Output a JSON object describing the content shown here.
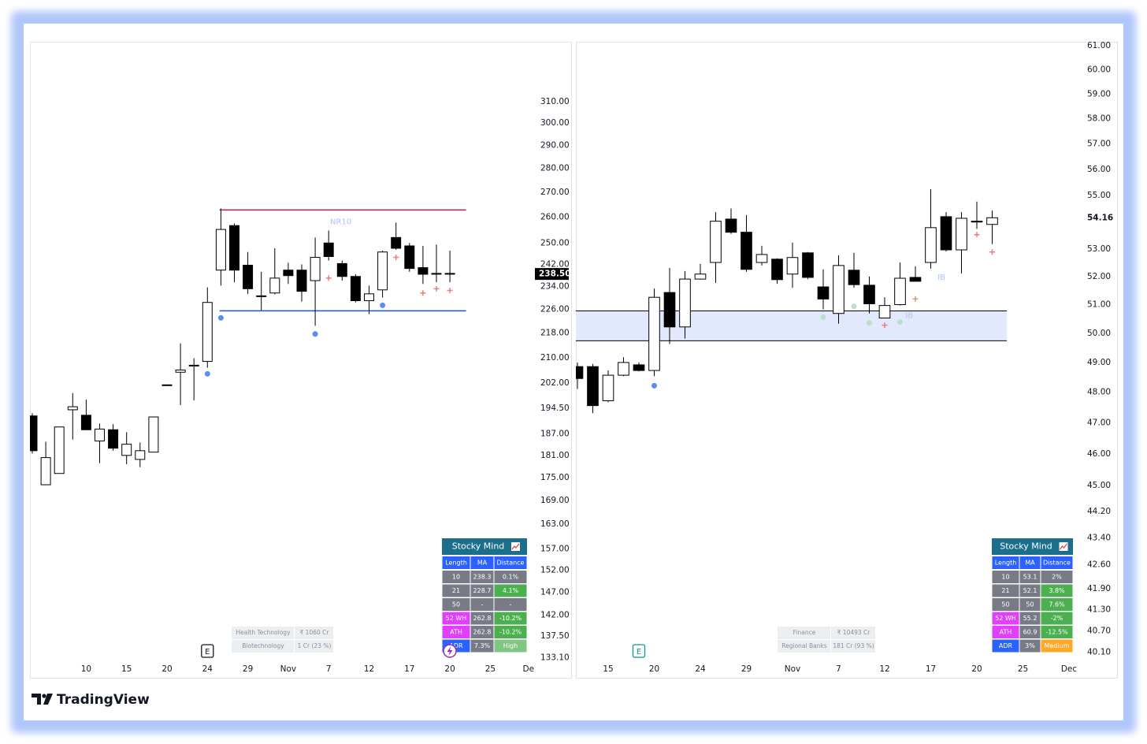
{
  "brand": "TradingView",
  "chart_data": [
    {
      "type": "candlestick",
      "log_scale": true,
      "ylim": [
        132.2,
        310.3
      ],
      "yticks": [
        {
          "value": 310,
          "label": "310.00"
        },
        {
          "value": 300,
          "label": "300.00"
        },
        {
          "value": 290,
          "label": "290.00"
        },
        {
          "value": 280,
          "label": "280.00"
        },
        {
          "value": 270,
          "label": "270.00"
        },
        {
          "value": 260,
          "label": "260.00"
        },
        {
          "value": 250,
          "label": "250.00"
        },
        {
          "value": 242,
          "label": "242.00"
        },
        {
          "value": 234,
          "label": "234.00"
        },
        {
          "value": 226,
          "label": "226.00"
        },
        {
          "value": 218,
          "label": "218.00"
        },
        {
          "value": 210,
          "label": "210.00"
        },
        {
          "value": 202,
          "label": "202.00"
        },
        {
          "value": 194.5,
          "label": "194.50"
        },
        {
          "value": 187,
          "label": "187.00"
        },
        {
          "value": 181,
          "label": "181.00"
        },
        {
          "value": 175,
          "label": "175.00"
        },
        {
          "value": 169,
          "label": "169.00"
        },
        {
          "value": 163,
          "label": "163.00"
        },
        {
          "value": 157,
          "label": "157.00"
        },
        {
          "value": 152,
          "label": "152.00"
        },
        {
          "value": 147,
          "label": "147.00"
        },
        {
          "value": 142,
          "label": "142.00"
        },
        {
          "value": 137.5,
          "label": "137.50"
        },
        {
          "value": 133.1,
          "label": "133.10"
        }
      ],
      "categories": [
        null,
        null,
        null,
        null,
        "10",
        null,
        null,
        "15",
        null,
        null,
        "20",
        null,
        null,
        "24",
        null,
        null,
        "29",
        null,
        null,
        "Nov",
        null,
        null,
        "7",
        null,
        null,
        "12",
        null,
        null,
        "17",
        null,
        null,
        "20",
        null,
        null,
        "25",
        null,
        null,
        "Dec"
      ],
      "open": [
        192.2,
        173.1,
        176.1,
        194.0,
        192.4,
        185.0,
        188.2,
        181.0,
        179.9,
        181.9,
        201.5,
        205.4,
        207.6,
        208.8,
        239.9,
        256.7,
        241.7,
        230.7,
        231.7,
        239.9,
        239.9,
        236.1,
        250.0,
        242.3,
        237.6,
        229.0,
        232.8,
        252.1,
        248.9,
        240.8,
        238.7,
        238.7,
        null,
        null,
        null,
        null,
        null,
        null
      ],
      "high": [
        193.0,
        184.8,
        189.0,
        199.0,
        197.0,
        190.0,
        189.8,
        187.5,
        184.6,
        191.9,
        201.5,
        214.6,
        209.8,
        233.7,
        263.5,
        257.6,
        246.6,
        239.3,
        248.0,
        242.6,
        242.0,
        252.1,
        254.8,
        243.4,
        238.4,
        234.3,
        247.1,
        257.9,
        250.0,
        248.9,
        249.4,
        247.1,
        null,
        null,
        null,
        null,
        null,
        null
      ],
      "low": [
        181.5,
        173.1,
        176.1,
        185.4,
        188.2,
        178.9,
        182.3,
        178.6,
        177.8,
        181.9,
        201.5,
        195.4,
        196.8,
        206.8,
        234.3,
        235.5,
        231.4,
        225.7,
        231.2,
        234.9,
        228.7,
        220.4,
        243.4,
        236.1,
        228.4,
        224.4,
        230.1,
        247.4,
        239.3,
        234.9,
        235.5,
        235.5,
        null,
        null,
        null,
        null,
        null,
        null
      ],
      "close": [
        182.3,
        180.4,
        189.0,
        194.9,
        188.2,
        188.4,
        183.0,
        184.1,
        182.3,
        191.9,
        201.5,
        206.1,
        207.6,
        228.4,
        255.2,
        239.9,
        233.2,
        230.7,
        237.0,
        237.9,
        232.3,
        244.6,
        244.9,
        237.6,
        229.0,
        231.4,
        246.6,
        248.0,
        240.5,
        238.4,
        238.7,
        238.5,
        null,
        null,
        null,
        null,
        null,
        null
      ],
      "up_color": "#ffffff",
      "down_color": "#000000",
      "wick_color": "#000000",
      "last_price": {
        "value": 238.5,
        "label": "238.50"
      },
      "hlines": [
        {
          "value": 262.9,
          "color": "#c2185b",
          "span": [
            13.9,
            32.2
          ]
        },
        {
          "value": 225.5,
          "color": "#1e53e5",
          "span": [
            13.9,
            32.2
          ]
        }
      ],
      "markers": [
        {
          "index": 13,
          "value": 204.9,
          "shape": "dot",
          "color": "#5b8def"
        },
        {
          "index": 14,
          "value": 223.1,
          "shape": "dot",
          "color": "#5b8def"
        },
        {
          "index": 21,
          "value": 217.7,
          "shape": "dot",
          "color": "#5b8def"
        },
        {
          "index": 26,
          "value": 227.4,
          "shape": "dot",
          "color": "#5b8def"
        },
        {
          "index": 22,
          "value": 237.0,
          "shape": "plus",
          "color": "#ef7d7d"
        },
        {
          "index": 27,
          "value": 244.6,
          "shape": "plus",
          "color": "#ef7d7d"
        },
        {
          "index": 29,
          "value": 231.7,
          "shape": "plus",
          "color": "#ef7d7d"
        },
        {
          "index": 30,
          "value": 233.2,
          "shape": "plus",
          "color": "#ef7d7d"
        },
        {
          "index": 31,
          "value": 232.6,
          "shape": "plus",
          "color": "#ef7d7d"
        }
      ],
      "annotations": [
        {
          "text": "NR10",
          "index": 22.9,
          "value": 258.2,
          "color": "#a9c4f5"
        }
      ],
      "events": [
        {
          "label": "E",
          "index": 13,
          "color": "#131722"
        }
      ],
      "table": {
        "title": "Stocky Mind",
        "title_color": "#1b6e8c",
        "header_color": "#2962ff",
        "columns": [
          "Length",
          "MA",
          "Distance"
        ],
        "rows": [
          [
            "10",
            "238.3",
            "0.1%"
          ],
          [
            "21",
            "228.7",
            "4.1%"
          ],
          [
            "50",
            "-",
            "-"
          ],
          [
            "52 WH",
            "262.8",
            "-10.2%"
          ],
          [
            "ATH",
            "262.8",
            "-10.2%"
          ],
          [
            "ADR",
            "7.3%",
            "High"
          ]
        ],
        "row_colors": [
          [
            "#787b86",
            "#787b86",
            "#787b86"
          ],
          [
            "#787b86",
            "#787b86",
            "#4caf50"
          ],
          [
            "#787b86",
            "#787b86",
            "#787b86"
          ],
          [
            "#e040fb",
            "#787b86",
            "#4caf50"
          ],
          [
            "#e040fb",
            "#787b86",
            "#4caf50"
          ],
          [
            "#2962ff",
            "#787b86",
            "#81c784"
          ]
        ]
      },
      "info": [
        [
          "Health Technology",
          "₹ 1060 Cr"
        ],
        [
          "Biotechnology",
          "1 Cr (23 %)"
        ]
      ]
    },
    {
      "type": "candlestick",
      "log_scale": true,
      "ylim": [
        39.83,
        61.27
      ],
      "yticks": [
        {
          "value": 61,
          "label": "61.00"
        },
        {
          "value": 60,
          "label": "60.00"
        },
        {
          "value": 59,
          "label": "59.00"
        },
        {
          "value": 58,
          "label": "58.00"
        },
        {
          "value": 57,
          "label": "57.00"
        },
        {
          "value": 56,
          "label": "56.00"
        },
        {
          "value": 55,
          "label": "55.00"
        },
        {
          "value": 53,
          "label": "53.00"
        },
        {
          "value": 52,
          "label": "52.00"
        },
        {
          "value": 51,
          "label": "51.00"
        },
        {
          "value": 50,
          "label": "50.00"
        },
        {
          "value": 49,
          "label": "49.00"
        },
        {
          "value": 48,
          "label": "48.00"
        },
        {
          "value": 47,
          "label": "47.00"
        },
        {
          "value": 46,
          "label": "46.00"
        },
        {
          "value": 45,
          "label": "45.00"
        },
        {
          "value": 44.2,
          "label": "44.20"
        },
        {
          "value": 43.4,
          "label": "43.40"
        },
        {
          "value": 42.6,
          "label": "42.60"
        },
        {
          "value": 41.9,
          "label": "41.90"
        },
        {
          "value": 41.3,
          "label": "41.30"
        },
        {
          "value": 40.7,
          "label": "40.70"
        },
        {
          "value": 40.1,
          "label": "40.10"
        }
      ],
      "categories": [
        null,
        null,
        "15",
        null,
        null,
        "20",
        null,
        null,
        "24",
        null,
        null,
        "29",
        null,
        null,
        "Nov",
        null,
        null,
        "7",
        null,
        null,
        "12",
        null,
        null,
        "17",
        null,
        null,
        "20",
        null,
        null,
        "25",
        null,
        null,
        "Dec"
      ],
      "open": [
        48.86,
        48.86,
        47.72,
        48.57,
        48.92,
        48.73,
        51.43,
        50.22,
        51.91,
        52.51,
        54.11,
        53.62,
        52.51,
        52.63,
        52.09,
        52.86,
        51.63,
        50.69,
        52.23,
        51.69,
        50.53,
        51.0,
        51.97,
        52.51,
        54.2,
        52.97,
        54.03,
        53.91,
        null,
        null,
        null,
        null,
        null
      ],
      "high": [
        49.0,
        48.95,
        48.73,
        49.18,
        49.0,
        51.57,
        52.31,
        52.2,
        52.46,
        54.37,
        54.51,
        54.26,
        53.12,
        52.66,
        53.24,
        52.89,
        52.26,
        52.77,
        52.86,
        52.0,
        51.26,
        52.51,
        52.37,
        55.24,
        54.37,
        54.37,
        54.77,
        54.43,
        null,
        null,
        null,
        null,
        null
      ],
      "low": [
        48.11,
        47.31,
        47.67,
        48.54,
        48.7,
        48.54,
        49.63,
        49.82,
        51.89,
        51.77,
        53.56,
        52.17,
        52.4,
        51.74,
        51.6,
        51.91,
        50.83,
        50.33,
        51.6,
        50.69,
        50.53,
        50.97,
        51.83,
        52.29,
        52.91,
        52.11,
        53.74,
        53.18,
        null,
        null,
        null,
        null,
        null
      ],
      "close": [
        48.46,
        47.56,
        48.57,
        49.0,
        48.73,
        51.26,
        50.22,
        51.91,
        52.09,
        54.03,
        53.62,
        52.26,
        52.8,
        51.89,
        52.69,
        51.97,
        51.2,
        52.4,
        51.71,
        51.03,
        50.97,
        51.94,
        51.83,
        53.79,
        52.97,
        54.14,
        54.03,
        54.16,
        null,
        null,
        null,
        null,
        null
      ],
      "up_color": "#ffffff",
      "down_color": "#000000",
      "wick_color": "#000000",
      "last_price": {
        "value": 54.16,
        "label": "54.16"
      },
      "zone": {
        "from": 49.74,
        "to": 50.78,
        "fill": "#e3e9fd",
        "border": "#000000",
        "span": [
          -0.2,
          27.95
        ]
      },
      "markers": [
        {
          "index": 5,
          "value": 48.22,
          "shape": "dot",
          "color": "#5b8def"
        },
        {
          "index": 16,
          "value": 50.56,
          "shape": "dot",
          "color": "#b7e1c8"
        },
        {
          "index": 18,
          "value": 50.94,
          "shape": "dot",
          "color": "#b7e1c8"
        },
        {
          "index": 19,
          "value": 50.36,
          "shape": "dot",
          "color": "#b7e1c8"
        },
        {
          "index": 21,
          "value": 50.39,
          "shape": "dot",
          "color": "#b7e1c8"
        },
        {
          "index": 20,
          "value": 50.28,
          "shape": "plus",
          "color": "#ef7d7d"
        },
        {
          "index": 22,
          "value": 51.2,
          "shape": "plus",
          "color": "#c9a07a"
        },
        {
          "index": 26,
          "value": 53.53,
          "shape": "plus",
          "color": "#ef7d7d"
        },
        {
          "index": 27,
          "value": 52.89,
          "shape": "plus",
          "color": "#ef7d7d"
        }
      ],
      "annotations": [
        {
          "text": "IB",
          "index": 23.7,
          "value": 51.97,
          "color": "#a9c4f5"
        },
        {
          "text": "IB",
          "index": 21.6,
          "value": 50.61,
          "color": "#a9c4f5"
        }
      ],
      "events": [
        {
          "label": "E",
          "index": 4,
          "color": "#089981"
        }
      ],
      "table": {
        "title": "Stocky Mind",
        "title_color": "#1b6e8c",
        "header_color": "#2962ff",
        "columns": [
          "Length",
          "MA",
          "Distance"
        ],
        "rows": [
          [
            "10",
            "53.1",
            "2%"
          ],
          [
            "21",
            "52.1",
            "3.8%"
          ],
          [
            "50",
            "50",
            "7.6%"
          ],
          [
            "52 WH",
            "55.2",
            "-2%"
          ],
          [
            "ATH",
            "60.9",
            "-12.5%"
          ],
          [
            "ADR",
            "3%",
            "Medium"
          ]
        ],
        "row_colors": [
          [
            "#787b86",
            "#787b86",
            "#787b86"
          ],
          [
            "#787b86",
            "#787b86",
            "#4caf50"
          ],
          [
            "#787b86",
            "#787b86",
            "#4caf50"
          ],
          [
            "#e040fb",
            "#787b86",
            "#4caf50"
          ],
          [
            "#e040fb",
            "#787b86",
            "#4caf50"
          ],
          [
            "#2962ff",
            "#787b86",
            "#ffa726"
          ]
        ]
      },
      "info": [
        [
          "Finance",
          "₹ 10493 Cr"
        ],
        [
          "Regional Banks",
          "181 Cr (93 %)"
        ]
      ]
    }
  ]
}
